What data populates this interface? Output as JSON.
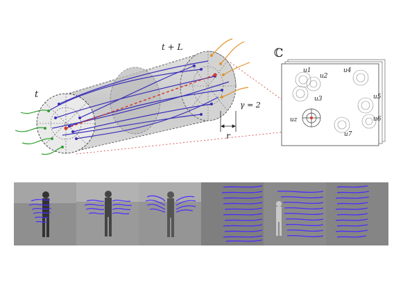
{
  "diagram": {
    "labels": {
      "t": "t",
      "t_plus_L": "t + L",
      "gamma": "γ = 2",
      "r": "r",
      "codebook": "ℂ",
      "u1": "u1",
      "u2": "u2",
      "u3": "u3",
      "u4": "u4",
      "u5": "u5",
      "u6": "u6",
      "u7": "u7",
      "uz": "uz"
    },
    "colors": {
      "tube_fill": "#cfcfcf",
      "trajectory_blue": "#3a2fb8",
      "trajectory_green": "#2f9e2f",
      "trajectory_orange": "#e0922b",
      "dashed_red": "#d23a2a",
      "frame_gray": "#8a8a8a",
      "overlay_blue": "#4a2cff"
    },
    "frames": [
      {
        "name": "frame-1"
      },
      {
        "name": "frame-2"
      },
      {
        "name": "frame-3"
      },
      {
        "name": "frame-4"
      },
      {
        "name": "frame-5"
      },
      {
        "name": "frame-6"
      }
    ]
  }
}
